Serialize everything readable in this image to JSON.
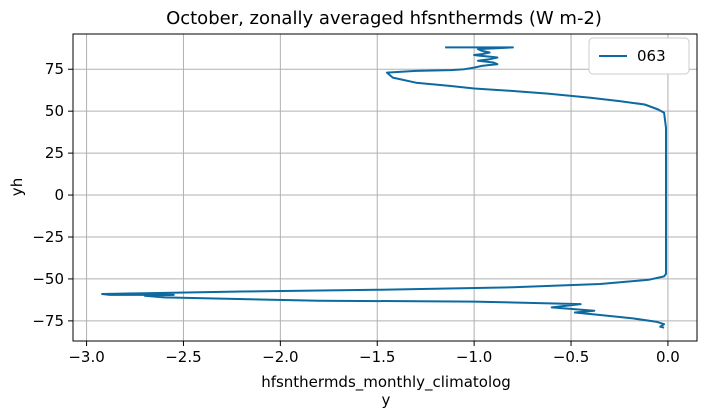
{
  "chart_data": {
    "type": "line",
    "title": "October, zonally averaged hfsnthermds (W m-2)",
    "xlabel_lines": [
      "hfsnthermds_monthly_climatolog",
      "y"
    ],
    "ylabel": "yh",
    "xlim": [
      -3.07,
      0.15
    ],
    "ylim": [
      -87,
      96
    ],
    "xticks": [
      -3.0,
      -2.5,
      -2.0,
      -1.5,
      -1.0,
      -0.5,
      0.0
    ],
    "xtick_labels": [
      "−3.0",
      "−2.5",
      "−2.0",
      "−1.5",
      "−1.0",
      "−0.5",
      "0.0"
    ],
    "yticks": [
      -75,
      -50,
      -25,
      0,
      25,
      50,
      75
    ],
    "ytick_labels": [
      "−75",
      "−50",
      "−25",
      "0",
      "25",
      "50",
      "75"
    ],
    "grid": true,
    "legend_position": "top-right",
    "series": [
      {
        "name": "063",
        "color": "#0d6aa0",
        "x": [
          -0.02,
          -0.04,
          -0.02,
          -0.06,
          -0.18,
          -0.35,
          -0.48,
          -0.38,
          -0.6,
          -0.45,
          -1.0,
          -1.8,
          -2.6,
          -2.7,
          -2.55,
          -2.88,
          -2.92,
          -2.7,
          -2.2,
          -1.5,
          -0.8,
          -0.35,
          -0.1,
          -0.02,
          -0.01,
          -0.01,
          -0.01,
          -0.01,
          -0.01,
          -0.01,
          -0.02,
          -0.05,
          -0.12,
          -0.25,
          -0.4,
          -0.62,
          -0.8,
          -1.0,
          -1.12,
          -1.3,
          -1.42,
          -1.45,
          -1.3,
          -1.12,
          -1.05,
          -1.0,
          -0.96,
          -0.92,
          -0.88,
          -0.9,
          -0.98,
          -0.92,
          -0.88,
          -0.92,
          -0.97,
          -1.0,
          -0.96,
          -0.92,
          -0.96,
          -0.98,
          -0.8,
          -1.0,
          -1.15
        ],
        "y": [
          -79,
          -78.5,
          -77,
          -75.5,
          -73.5,
          -71.5,
          -70,
          -69,
          -67,
          -65,
          -63.5,
          -63,
          -61,
          -60,
          -59.5,
          -59.5,
          -59,
          -58.5,
          -57.5,
          -56.5,
          -55,
          -53,
          -50.5,
          -48.5,
          -47,
          -40,
          -20,
          0,
          20,
          40,
          49,
          51,
          54,
          56,
          58,
          60.5,
          62,
          63.5,
          65,
          67,
          70,
          73,
          74,
          74.5,
          75,
          76,
          77,
          77.5,
          78,
          79,
          80,
          81,
          82,
          82.5,
          83,
          83.5,
          84,
          85,
          86,
          87,
          88,
          88,
          88
        ]
      }
    ]
  }
}
